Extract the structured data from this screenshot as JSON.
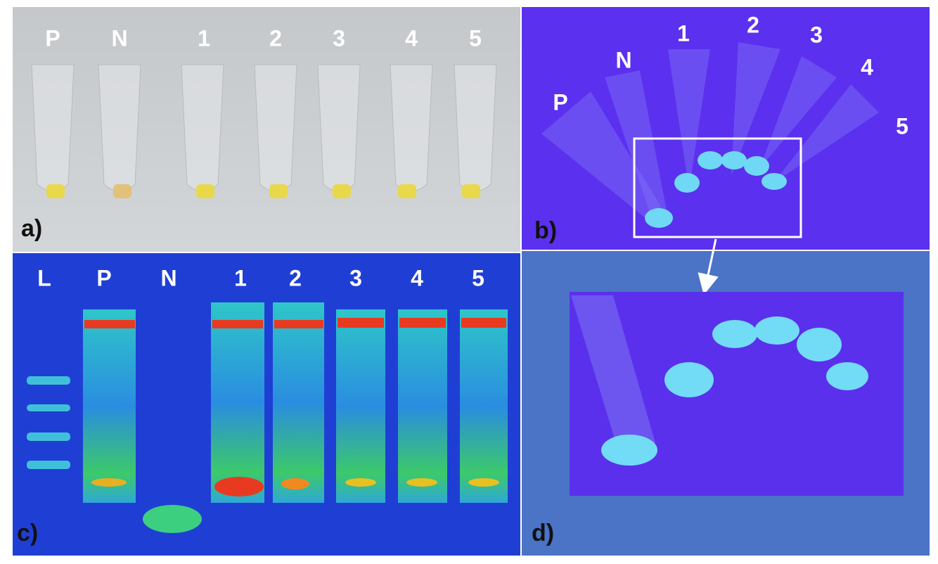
{
  "panels": [
    {
      "label": "a)",
      "lanes": [
        "P",
        "N",
        "1",
        "2",
        "3",
        "4",
        "5"
      ]
    },
    {
      "label": "b)",
      "lanes": [
        "P",
        "N",
        "1",
        "2",
        "3",
        "4",
        "5"
      ]
    },
    {
      "label": "c)",
      "lanes": [
        "L",
        "P",
        "N",
        "1",
        "2",
        "3",
        "4",
        "5"
      ]
    },
    {
      "label": "d)"
    }
  ]
}
